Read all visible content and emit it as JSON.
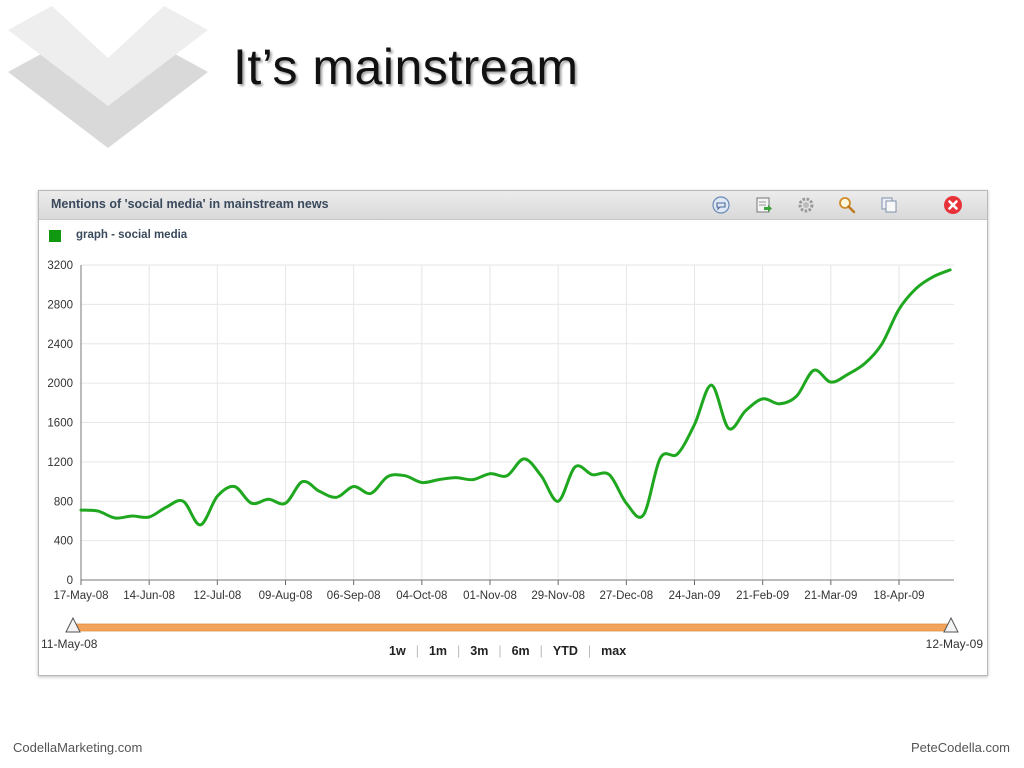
{
  "slide": {
    "title": "It’s mainstream",
    "footer_left": "CodellaMarketing.com",
    "footer_right": "PeteCodella.com"
  },
  "widget": {
    "title": "Mentions of 'social media' in mainstream news",
    "toolbar_icons": [
      "chat-icon",
      "export-icon",
      "settings-icon",
      "search-icon",
      "copy-icon",
      "close-icon"
    ],
    "range_start": "11-May-08",
    "range_end": "12-May-09",
    "zoom_options": [
      "1w",
      "1m",
      "3m",
      "6m",
      "YTD",
      "max"
    ]
  },
  "colors": {
    "series": "#1fa81f",
    "range_bar": "#f2a35c",
    "header_text": "#3a4a5c"
  },
  "chart_data": {
    "type": "line",
    "title": "Mentions of 'social media' in mainstream news",
    "xlabel": "",
    "ylabel": "",
    "ylim": [
      0,
      3200
    ],
    "yticks": [
      0,
      400,
      800,
      1200,
      1600,
      2000,
      2400,
      2800,
      3200
    ],
    "xticks": [
      "17-May-08",
      "14-Jun-08",
      "12-Jul-08",
      "09-Aug-08",
      "06-Sep-08",
      "04-Oct-08",
      "01-Nov-08",
      "29-Nov-08",
      "27-Dec-08",
      "24-Jan-09",
      "21-Feb-09",
      "21-Mar-09",
      "18-Apr-09"
    ],
    "grid": true,
    "legend_position": "top-left",
    "series": [
      {
        "name": "graph - social media",
        "x": [
          "17-May-08",
          "24-May-08",
          "31-May-08",
          "07-Jun-08",
          "14-Jun-08",
          "21-Jun-08",
          "28-Jun-08",
          "05-Jul-08",
          "12-Jul-08",
          "19-Jul-08",
          "26-Jul-08",
          "02-Aug-08",
          "09-Aug-08",
          "16-Aug-08",
          "23-Aug-08",
          "30-Aug-08",
          "06-Sep-08",
          "13-Sep-08",
          "20-Sep-08",
          "27-Sep-08",
          "04-Oct-08",
          "11-Oct-08",
          "18-Oct-08",
          "25-Oct-08",
          "01-Nov-08",
          "08-Nov-08",
          "15-Nov-08",
          "22-Nov-08",
          "29-Nov-08",
          "06-Dec-08",
          "13-Dec-08",
          "20-Dec-08",
          "27-Dec-08",
          "03-Jan-09",
          "10-Jan-09",
          "17-Jan-09",
          "24-Jan-09",
          "31-Jan-09",
          "07-Feb-09",
          "14-Feb-09",
          "21-Feb-09",
          "28-Feb-09",
          "07-Mar-09",
          "14-Mar-09",
          "21-Mar-09",
          "28-Mar-09",
          "04-Apr-09",
          "11-Apr-09",
          "18-Apr-09",
          "25-Apr-09",
          "02-May-09",
          "09-May-09"
        ],
        "values": [
          710,
          700,
          630,
          650,
          640,
          740,
          800,
          560,
          850,
          950,
          780,
          820,
          780,
          1000,
          900,
          840,
          950,
          880,
          1050,
          1060,
          990,
          1020,
          1040,
          1020,
          1080,
          1060,
          1230,
          1060,
          800,
          1150,
          1070,
          1070,
          780,
          660,
          1240,
          1280,
          1580,
          1980,
          1540,
          1720,
          1840,
          1790,
          1870,
          2130,
          2010,
          2090,
          2200,
          2400,
          2750,
          2960,
          3080,
          3150
        ]
      }
    ]
  }
}
